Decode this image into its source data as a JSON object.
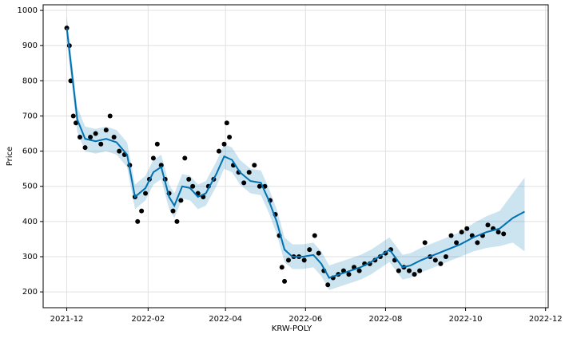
{
  "chart_data": {
    "type": "forecast",
    "x_label": "KRW-POLY",
    "y_label": "Price",
    "xlim": [
      -18,
      367
    ],
    "ylim": [
      155,
      1016
    ],
    "xticks": [
      {
        "value": 0,
        "label": "2021-12"
      },
      {
        "value": 62,
        "label": "2022-02"
      },
      {
        "value": 121,
        "label": "2022-04"
      },
      {
        "value": 182,
        "label": "2022-06"
      },
      {
        "value": 243,
        "label": "2022-08"
      },
      {
        "value": 304,
        "label": "2022-10"
      },
      {
        "value": 365,
        "label": "2022-12"
      }
    ],
    "yticks": [
      200,
      300,
      400,
      500,
      600,
      700,
      800,
      900,
      1000
    ],
    "grid": true,
    "series": [
      {
        "type": "scatter",
        "color": "#000000",
        "x": [
          0,
          2,
          3,
          5,
          7,
          10,
          14,
          18,
          22,
          26,
          30,
          33,
          36,
          40,
          44,
          48,
          52,
          54,
          57,
          60,
          63,
          66,
          69,
          72,
          75,
          78,
          81,
          84,
          87,
          90,
          93,
          96,
          100,
          104,
          108,
          112,
          116,
          120,
          122,
          124,
          127,
          131,
          135,
          139,
          143,
          147,
          151,
          155,
          159,
          162,
          164,
          166,
          169,
          173,
          177,
          181,
          185,
          189,
          192,
          196,
          199,
          203,
          207,
          211,
          215,
          219,
          223,
          227,
          231,
          235,
          239,
          243,
          247,
          250,
          253,
          257,
          261,
          265,
          269,
          273,
          277,
          281,
          285,
          289,
          293,
          297,
          301,
          305,
          309,
          313,
          317,
          321,
          325,
          329,
          333
        ],
        "values": [
          950,
          900,
          800,
          700,
          680,
          640,
          610,
          640,
          650,
          620,
          660,
          700,
          640,
          600,
          590,
          560,
          470,
          400,
          430,
          480,
          520,
          580,
          620,
          560,
          520,
          480,
          430,
          400,
          460,
          580,
          520,
          500,
          480,
          470,
          500,
          520,
          600,
          620,
          680,
          640,
          560,
          540,
          510,
          540,
          560,
          500,
          500,
          460,
          420,
          360,
          270,
          230,
          290,
          300,
          300,
          290,
          320,
          360,
          310,
          260,
          220,
          240,
          250,
          260,
          250,
          270,
          260,
          280,
          280,
          290,
          300,
          310,
          320,
          290,
          260,
          270,
          260,
          250,
          260,
          340,
          300,
          290,
          280,
          300,
          360,
          340,
          370,
          380,
          360,
          340,
          360,
          390,
          380,
          370,
          365
        ]
      },
      {
        "type": "band",
        "color": "#0072B2",
        "opacity": 0.2,
        "x": [
          0,
          4,
          8,
          14,
          22,
          30,
          38,
          46,
          52,
          60,
          66,
          72,
          78,
          82,
          88,
          94,
          100,
          106,
          114,
          120,
          126,
          132,
          140,
          148,
          154,
          160,
          166,
          172,
          180,
          188,
          194,
          200,
          208,
          216,
          224,
          232,
          240,
          246,
          250,
          256,
          262,
          270,
          280,
          290,
          300,
          310,
          320,
          330,
          340,
          349
        ],
        "lower": [
          915,
          785,
          655,
          600,
          593,
          600,
          590,
          555,
          435,
          460,
          505,
          520,
          435,
          410,
          465,
          460,
          435,
          445,
          500,
          550,
          540,
          505,
          480,
          475,
          425,
          365,
          285,
          265,
          265,
          270,
          245,
          205,
          215,
          225,
          235,
          250,
          270,
          285,
          265,
          235,
          240,
          255,
          270,
          285,
          300,
          315,
          325,
          330,
          340,
          315
        ],
        "upper": [
          985,
          855,
          725,
          670,
          663,
          670,
          660,
          625,
          505,
          530,
          575,
          590,
          505,
          480,
          535,
          530,
          505,
          515,
          570,
          620,
          610,
          575,
          550,
          545,
          495,
          435,
          355,
          335,
          335,
          340,
          315,
          275,
          285,
          295,
          305,
          320,
          340,
          355,
          335,
          305,
          310,
          325,
          340,
          355,
          370,
          395,
          415,
          430,
          480,
          525
        ]
      },
      {
        "type": "line",
        "color": "#0072B2",
        "x": [
          0,
          4,
          8,
          14,
          22,
          30,
          38,
          46,
          52,
          60,
          66,
          72,
          78,
          82,
          88,
          94,
          100,
          106,
          114,
          120,
          126,
          132,
          140,
          148,
          154,
          160,
          166,
          172,
          180,
          188,
          194,
          200,
          208,
          216,
          224,
          232,
          240,
          246,
          250,
          256,
          262,
          270,
          280,
          290,
          300,
          310,
          320,
          330,
          340,
          349
        ],
        "values": [
          950,
          820,
          690,
          635,
          628,
          635,
          625,
          590,
          470,
          495,
          540,
          555,
          470,
          445,
          500,
          495,
          470,
          480,
          535,
          585,
          575,
          540,
          515,
          510,
          460,
          400,
          320,
          300,
          300,
          305,
          280,
          240,
          250,
          260,
          270,
          285,
          305,
          320,
          300,
          270,
          275,
          290,
          305,
          320,
          335,
          355,
          370,
          380,
          410,
          428
        ]
      }
    ]
  }
}
